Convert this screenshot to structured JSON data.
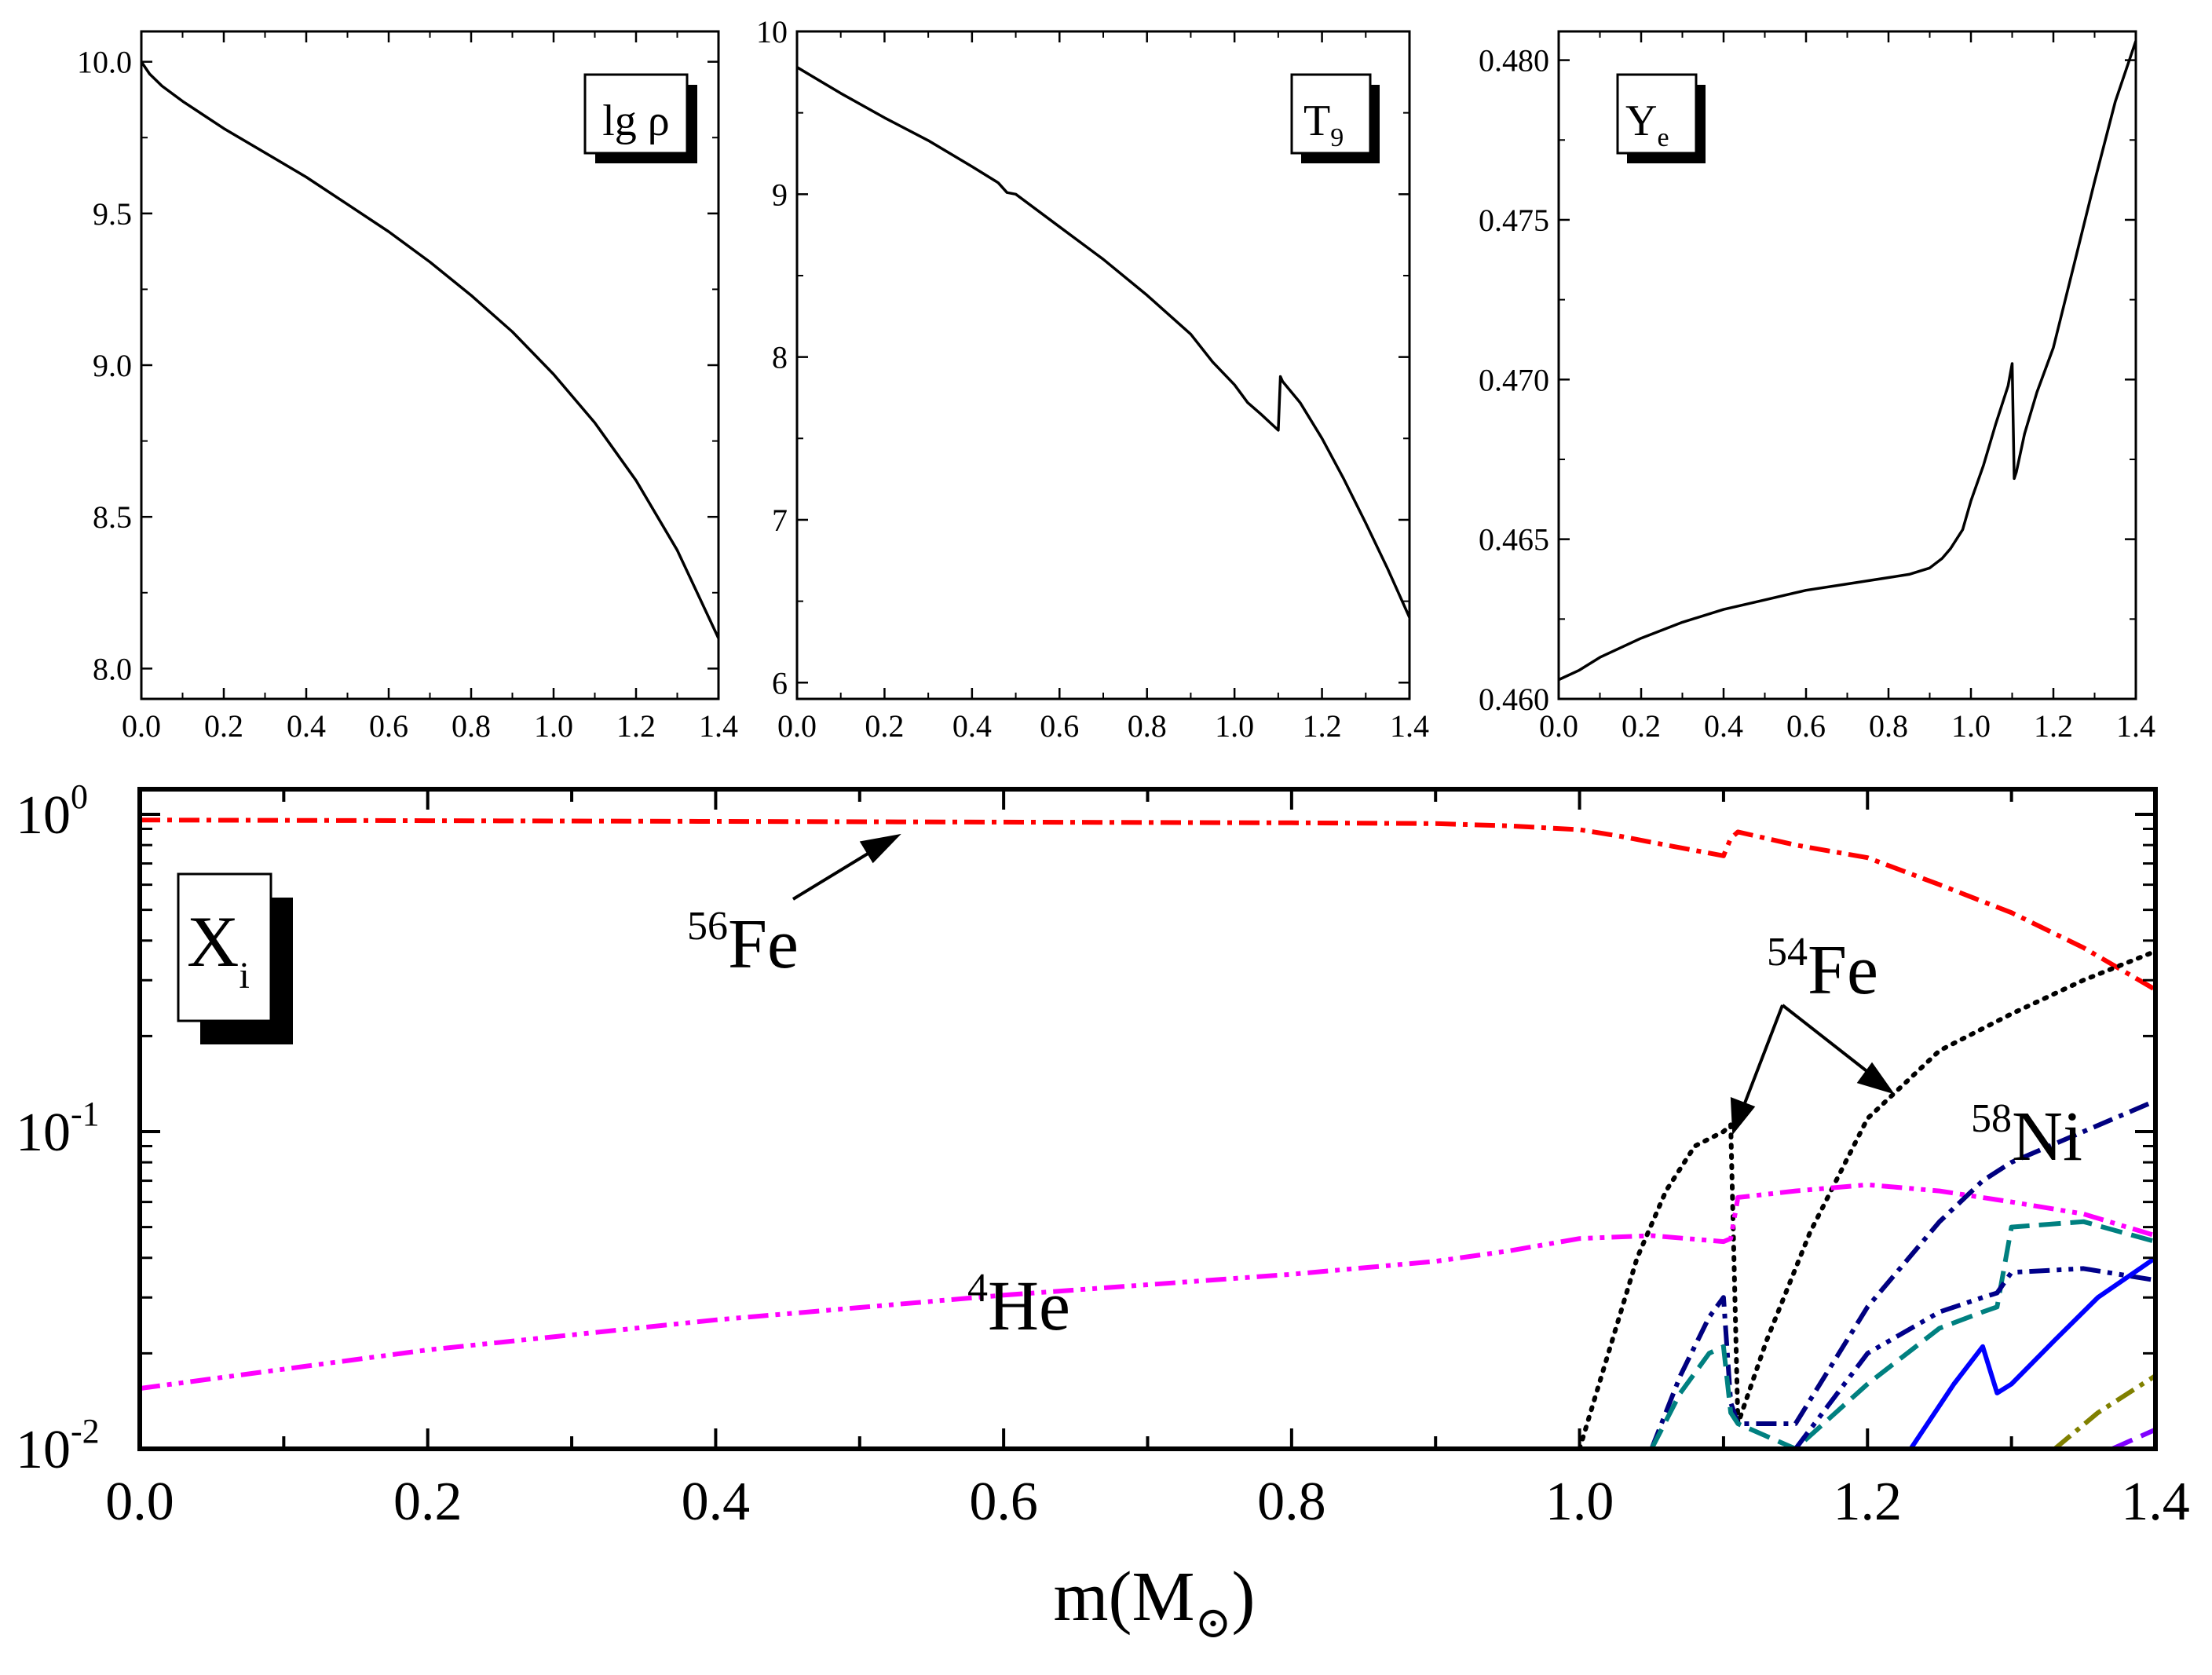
{
  "chart_data": [
    {
      "type": "line",
      "title": "",
      "label": "lg ρ",
      "xlabel": "",
      "ylabel": "",
      "xlim": [
        0.0,
        1.4
      ],
      "ylim": [
        7.9,
        10.1
      ],
      "x_ticks": [
        "0.0",
        "0.2",
        "0.4",
        "0.6",
        "0.8",
        "1.0",
        "1.2",
        "1.4"
      ],
      "y_ticks": [
        "8.0",
        "8.5",
        "9.0",
        "9.5",
        "10.0"
      ],
      "series": [
        {
          "name": "lg ρ",
          "color": "#000000",
          "style": "solid",
          "x": [
            0.0,
            0.02,
            0.05,
            0.1,
            0.2,
            0.3,
            0.4,
            0.5,
            0.6,
            0.7,
            0.8,
            0.9,
            1.0,
            1.1,
            1.2,
            1.3,
            1.4
          ],
          "y": [
            10.0,
            9.96,
            9.92,
            9.87,
            9.78,
            9.7,
            9.62,
            9.53,
            9.44,
            9.34,
            9.23,
            9.11,
            8.97,
            8.81,
            8.62,
            8.39,
            8.1
          ]
        }
      ]
    },
    {
      "type": "line",
      "title": "",
      "label": "T",
      "label_sub": "9",
      "xlabel": "",
      "ylabel": "",
      "xlim": [
        0.0,
        1.4
      ],
      "ylim": [
        5.9,
        10.0
      ],
      "x_ticks": [
        "0.0",
        "0.2",
        "0.4",
        "0.6",
        "0.8",
        "1.0",
        "1.2",
        "1.4"
      ],
      "y_ticks": [
        "6",
        "7",
        "8",
        "9",
        "10"
      ],
      "series": [
        {
          "name": "T9",
          "color": "#000000",
          "style": "solid",
          "x": [
            0.0,
            0.05,
            0.1,
            0.2,
            0.3,
            0.4,
            0.46,
            0.48,
            0.5,
            0.6,
            0.7,
            0.8,
            0.9,
            0.95,
            1.0,
            1.03,
            1.06,
            1.1,
            1.105,
            1.11,
            1.15,
            1.2,
            1.25,
            1.3,
            1.35,
            1.4
          ],
          "y": [
            9.78,
            9.7,
            9.62,
            9.47,
            9.33,
            9.17,
            9.07,
            9.01,
            9.0,
            8.8,
            8.6,
            8.38,
            8.14,
            7.97,
            7.83,
            7.72,
            7.65,
            7.55,
            7.88,
            7.85,
            7.72,
            7.5,
            7.25,
            6.98,
            6.7,
            6.4
          ]
        }
      ]
    },
    {
      "type": "line",
      "title": "",
      "label": "Y",
      "label_sub": "e",
      "xlabel": "",
      "ylabel": "",
      "xlim": [
        0.0,
        1.4
      ],
      "ylim": [
        0.46,
        0.4809
      ],
      "x_ticks": [
        "0.0",
        "0.2",
        "0.4",
        "0.6",
        "0.8",
        "1.0",
        "1.2",
        "1.4"
      ],
      "y_ticks": [
        "0.460",
        "0.465",
        "0.470",
        "0.475",
        "0.480"
      ],
      "series": [
        {
          "name": "Ye",
          "color": "#000000",
          "style": "solid",
          "x": [
            0.0,
            0.05,
            0.1,
            0.2,
            0.3,
            0.4,
            0.5,
            0.6,
            0.7,
            0.8,
            0.85,
            0.9,
            0.93,
            0.95,
            0.98,
            1.0,
            1.03,
            1.06,
            1.09,
            1.1,
            1.105,
            1.11,
            1.13,
            1.16,
            1.2,
            1.25,
            1.3,
            1.35,
            1.4
          ],
          "y": [
            0.4606,
            0.4609,
            0.4613,
            0.4619,
            0.4624,
            0.4628,
            0.4631,
            0.4634,
            0.4636,
            0.4638,
            0.4639,
            0.4641,
            0.4644,
            0.4647,
            0.4653,
            0.4662,
            0.4673,
            0.4686,
            0.4698,
            0.4705,
            0.4669,
            0.4671,
            0.4683,
            0.4696,
            0.471,
            0.4736,
            0.4762,
            0.4787,
            0.4806
          ]
        }
      ]
    },
    {
      "type": "line",
      "title": "",
      "label": "X",
      "label_sub": "i",
      "xlabel": "m(M",
      "xlabel_symbol": "⊙",
      "xlabel_close": ")",
      "ylabel": "",
      "yscale": "log",
      "xlim": [
        0.0,
        1.4
      ],
      "ylim": [
        0.01,
        1.2
      ],
      "x_ticks": [
        "0.0",
        "0.2",
        "0.4",
        "0.6",
        "0.8",
        "1.0",
        "1.2",
        "1.4"
      ],
      "y_ticks": [
        {
          "base": "10",
          "exp": "0",
          "value": 1
        },
        {
          "base": "10",
          "exp": "-1",
          "value": 0.1
        },
        {
          "base": "10",
          "exp": "-2",
          "value": 0.01
        }
      ],
      "series": [
        {
          "name": "56Fe",
          "color": "#ff0000",
          "style": "dashdot",
          "x": [
            0.0,
            0.2,
            0.4,
            0.6,
            0.8,
            0.9,
            0.95,
            1.0,
            1.03,
            1.06,
            1.1,
            1.105,
            1.11,
            1.15,
            1.2,
            1.25,
            1.3,
            1.35,
            1.4
          ],
          "y": [
            0.96,
            0.955,
            0.95,
            0.945,
            0.94,
            0.935,
            0.92,
            0.895,
            0.85,
            0.8,
            0.74,
            0.84,
            0.88,
            0.8,
            0.73,
            0.6,
            0.49,
            0.38,
            0.28
          ]
        },
        {
          "name": "54Fe",
          "color": "#000000",
          "style": "dotted",
          "x": [
            1.0,
            1.02,
            1.04,
            1.06,
            1.08,
            1.1,
            1.105,
            1.11,
            1.13,
            1.16,
            1.2,
            1.25,
            1.3,
            1.35,
            1.4
          ],
          "y": [
            0.01,
            0.02,
            0.04,
            0.065,
            0.09,
            0.1,
            0.105,
            0.012,
            0.022,
            0.048,
            0.11,
            0.18,
            0.235,
            0.3,
            0.37
          ]
        },
        {
          "name": "4He",
          "color": "#ff00ff",
          "style": "dashdotdot",
          "x": [
            0.0,
            0.2,
            0.4,
            0.6,
            0.8,
            0.9,
            0.95,
            1.0,
            1.05,
            1.1,
            1.105,
            1.11,
            1.15,
            1.2,
            1.25,
            1.3,
            1.35,
            1.4
          ],
          "y": [
            0.0155,
            0.0205,
            0.0255,
            0.0305,
            0.0355,
            0.039,
            0.042,
            0.046,
            0.047,
            0.045,
            0.046,
            0.062,
            0.065,
            0.068,
            0.065,
            0.06,
            0.055,
            0.047
          ]
        },
        {
          "name": "58Ni",
          "color": "#000080",
          "style": "dashdot",
          "x": [
            1.05,
            1.07,
            1.09,
            1.1,
            1.105,
            1.11,
            1.15,
            1.2,
            1.25,
            1.28,
            1.3,
            1.35,
            1.4
          ],
          "y": [
            0.01,
            0.017,
            0.026,
            0.03,
            0.014,
            0.012,
            0.012,
            0.028,
            0.052,
            0.07,
            0.08,
            0.1,
            0.125
          ]
        },
        {
          "name": "teal",
          "color": "#008080",
          "style": "dashed",
          "x": [
            1.05,
            1.07,
            1.09,
            1.1,
            1.105,
            1.11,
            1.15,
            1.2,
            1.25,
            1.28,
            1.29,
            1.3,
            1.35,
            1.4
          ],
          "y": [
            0.01,
            0.015,
            0.02,
            0.021,
            0.013,
            0.012,
            0.01,
            0.016,
            0.024,
            0.027,
            0.028,
            0.05,
            0.052,
            0.045
          ]
        },
        {
          "name": "navy-dotted",
          "color": "#00008b",
          "style": "dashdotdot",
          "x": [
            1.15,
            1.2,
            1.25,
            1.28,
            1.29,
            1.3,
            1.35,
            1.4
          ],
          "y": [
            0.01,
            0.02,
            0.027,
            0.03,
            0.031,
            0.036,
            0.037,
            0.034
          ]
        },
        {
          "name": "blue",
          "color": "#0000ff",
          "style": "solid",
          "x": [
            1.23,
            1.26,
            1.28,
            1.29,
            1.3,
            1.33,
            1.36,
            1.4
          ],
          "y": [
            0.01,
            0.016,
            0.021,
            0.015,
            0.016,
            0.022,
            0.03,
            0.04
          ]
        },
        {
          "name": "olive",
          "color": "#808000",
          "style": "dashdot",
          "x": [
            1.33,
            1.36,
            1.4
          ],
          "y": [
            0.01,
            0.013,
            0.017
          ]
        },
        {
          "name": "purple",
          "color": "#8000ff",
          "style": "dashed",
          "x": [
            1.37,
            1.4
          ],
          "y": [
            0.01,
            0.0115
          ]
        }
      ],
      "annotations": [
        {
          "iso": "56",
          "el": "Fe"
        },
        {
          "iso": "54",
          "el": "Fe"
        },
        {
          "iso": "58",
          "el": "Ni"
        },
        {
          "iso": "4",
          "el": "He"
        }
      ]
    }
  ]
}
